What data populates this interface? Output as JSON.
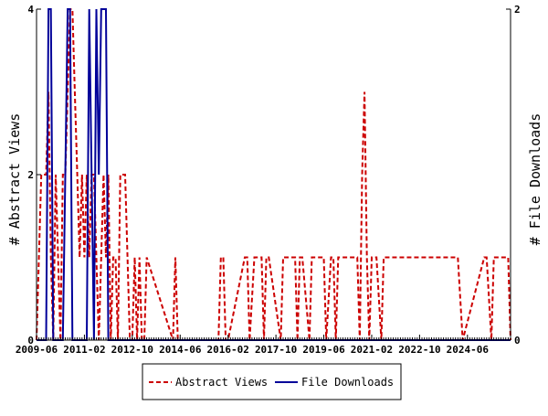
{
  "chart_data": {
    "type": "line",
    "title": "",
    "xlabel": "",
    "ylabel": "# Abstract Views",
    "y2label": "# File Downloads",
    "x_range": [
      "2009-06",
      "2025-12"
    ],
    "ylim": [
      0,
      4
    ],
    "y2lim": [
      0,
      2
    ],
    "yticks": [
      "0",
      "2",
      "4"
    ],
    "y2ticks": [
      "0",
      "2"
    ],
    "xticks": [
      "2009-06",
      "2011-02",
      "2012-10",
      "2014-06",
      "2016-02",
      "2017-10",
      "2019-06",
      "2021-02",
      "2022-10",
      "2024-06"
    ],
    "legend_position": "bottom",
    "grid": false,
    "colors": {
      "abstract_views": "#cc0000",
      "file_downloads": "#000099"
    },
    "series": [
      {
        "name": "Abstract Views",
        "axis": "left",
        "style": "dashed",
        "x": [
          "2009-06",
          "2009-07",
          "2009-08",
          "2009-09",
          "2009-10",
          "2009-11",
          "2009-12",
          "2010-01",
          "2010-02",
          "2010-03",
          "2010-04",
          "2010-05",
          "2010-06",
          "2010-07",
          "2010-08",
          "2010-09",
          "2010-10",
          "2010-11",
          "2010-12",
          "2011-01",
          "2011-02",
          "2011-03",
          "2011-04",
          "2011-05",
          "2011-06",
          "2011-07",
          "2011-08",
          "2011-09",
          "2011-10",
          "2011-11",
          "2011-12",
          "2012-01",
          "2012-02",
          "2012-03",
          "2012-04",
          "2012-05",
          "2012-06",
          "2012-07",
          "2012-08",
          "2012-09",
          "2012-10",
          "2012-11",
          "2012-12",
          "2013-01",
          "2013-02",
          "2013-03",
          "2013-04",
          "2014-03",
          "2014-04",
          "2014-05",
          "2015-10",
          "2015-11",
          "2015-12",
          "2016-01",
          "2016-02",
          "2016-09",
          "2016-10",
          "2016-11",
          "2017-01",
          "2017-04",
          "2017-05",
          "2017-06",
          "2017-07",
          "2017-12",
          "2018-01",
          "2018-06",
          "2018-07",
          "2018-08",
          "2018-09",
          "2018-12",
          "2019-01",
          "2019-06",
          "2019-07",
          "2019-09",
          "2019-10",
          "2019-11",
          "2019-12",
          "2020-08",
          "2020-09",
          "2020-10",
          "2020-11",
          "2020-12",
          "2021-01",
          "2021-02",
          "2021-03",
          "2021-04",
          "2021-06",
          "2021-07",
          "2024-01",
          "2024-02",
          "2024-04",
          "2025-01",
          "2025-02",
          "2025-04",
          "2025-05",
          "2025-11",
          "2025-12"
        ],
        "values": [
          0,
          1,
          2,
          2,
          2,
          3,
          1,
          0,
          2,
          1,
          0,
          2,
          2,
          3,
          4,
          4,
          3,
          2,
          1,
          2,
          1,
          2,
          1,
          2,
          2,
          1,
          0,
          1,
          2,
          1,
          2,
          0,
          1,
          1,
          0,
          2,
          2,
          2,
          1,
          0,
          0,
          1,
          0,
          1,
          0,
          0,
          1,
          0,
          1,
          0,
          0,
          1,
          1,
          0,
          0,
          1,
          1,
          0,
          1,
          1,
          0,
          1,
          1,
          0,
          1,
          1,
          0,
          1,
          1,
          0,
          1,
          1,
          0,
          1,
          1,
          0,
          1,
          1,
          0,
          2,
          3,
          1,
          0,
          1,
          1,
          1,
          0,
          1,
          1,
          1,
          0,
          1,
          1,
          0,
          1,
          1,
          0
        ]
      },
      {
        "name": "File Downloads",
        "axis": "right",
        "style": "solid",
        "x": [
          "2009-06",
          "2009-07",
          "2009-08",
          "2009-09",
          "2009-10",
          "2009-11",
          "2009-12",
          "2010-01",
          "2010-02",
          "2010-03",
          "2010-04",
          "2010-05",
          "2010-06",
          "2010-07",
          "2010-08",
          "2010-09",
          "2010-10",
          "2010-11",
          "2010-12",
          "2011-01",
          "2011-02",
          "2011-03",
          "2011-04",
          "2011-05",
          "2011-06",
          "2011-07",
          "2011-08",
          "2011-09",
          "2011-10",
          "2011-11",
          "2011-12",
          "2012-01",
          "2012-02",
          "2025-12"
        ],
        "values": [
          0,
          0,
          0,
          0,
          0,
          2,
          2,
          0,
          0,
          0,
          0,
          0,
          1,
          2,
          2,
          0,
          0,
          0,
          0,
          0,
          0,
          0,
          2,
          1,
          0,
          2,
          1,
          2,
          2,
          2,
          0,
          0,
          0,
          0
        ]
      }
    ]
  }
}
